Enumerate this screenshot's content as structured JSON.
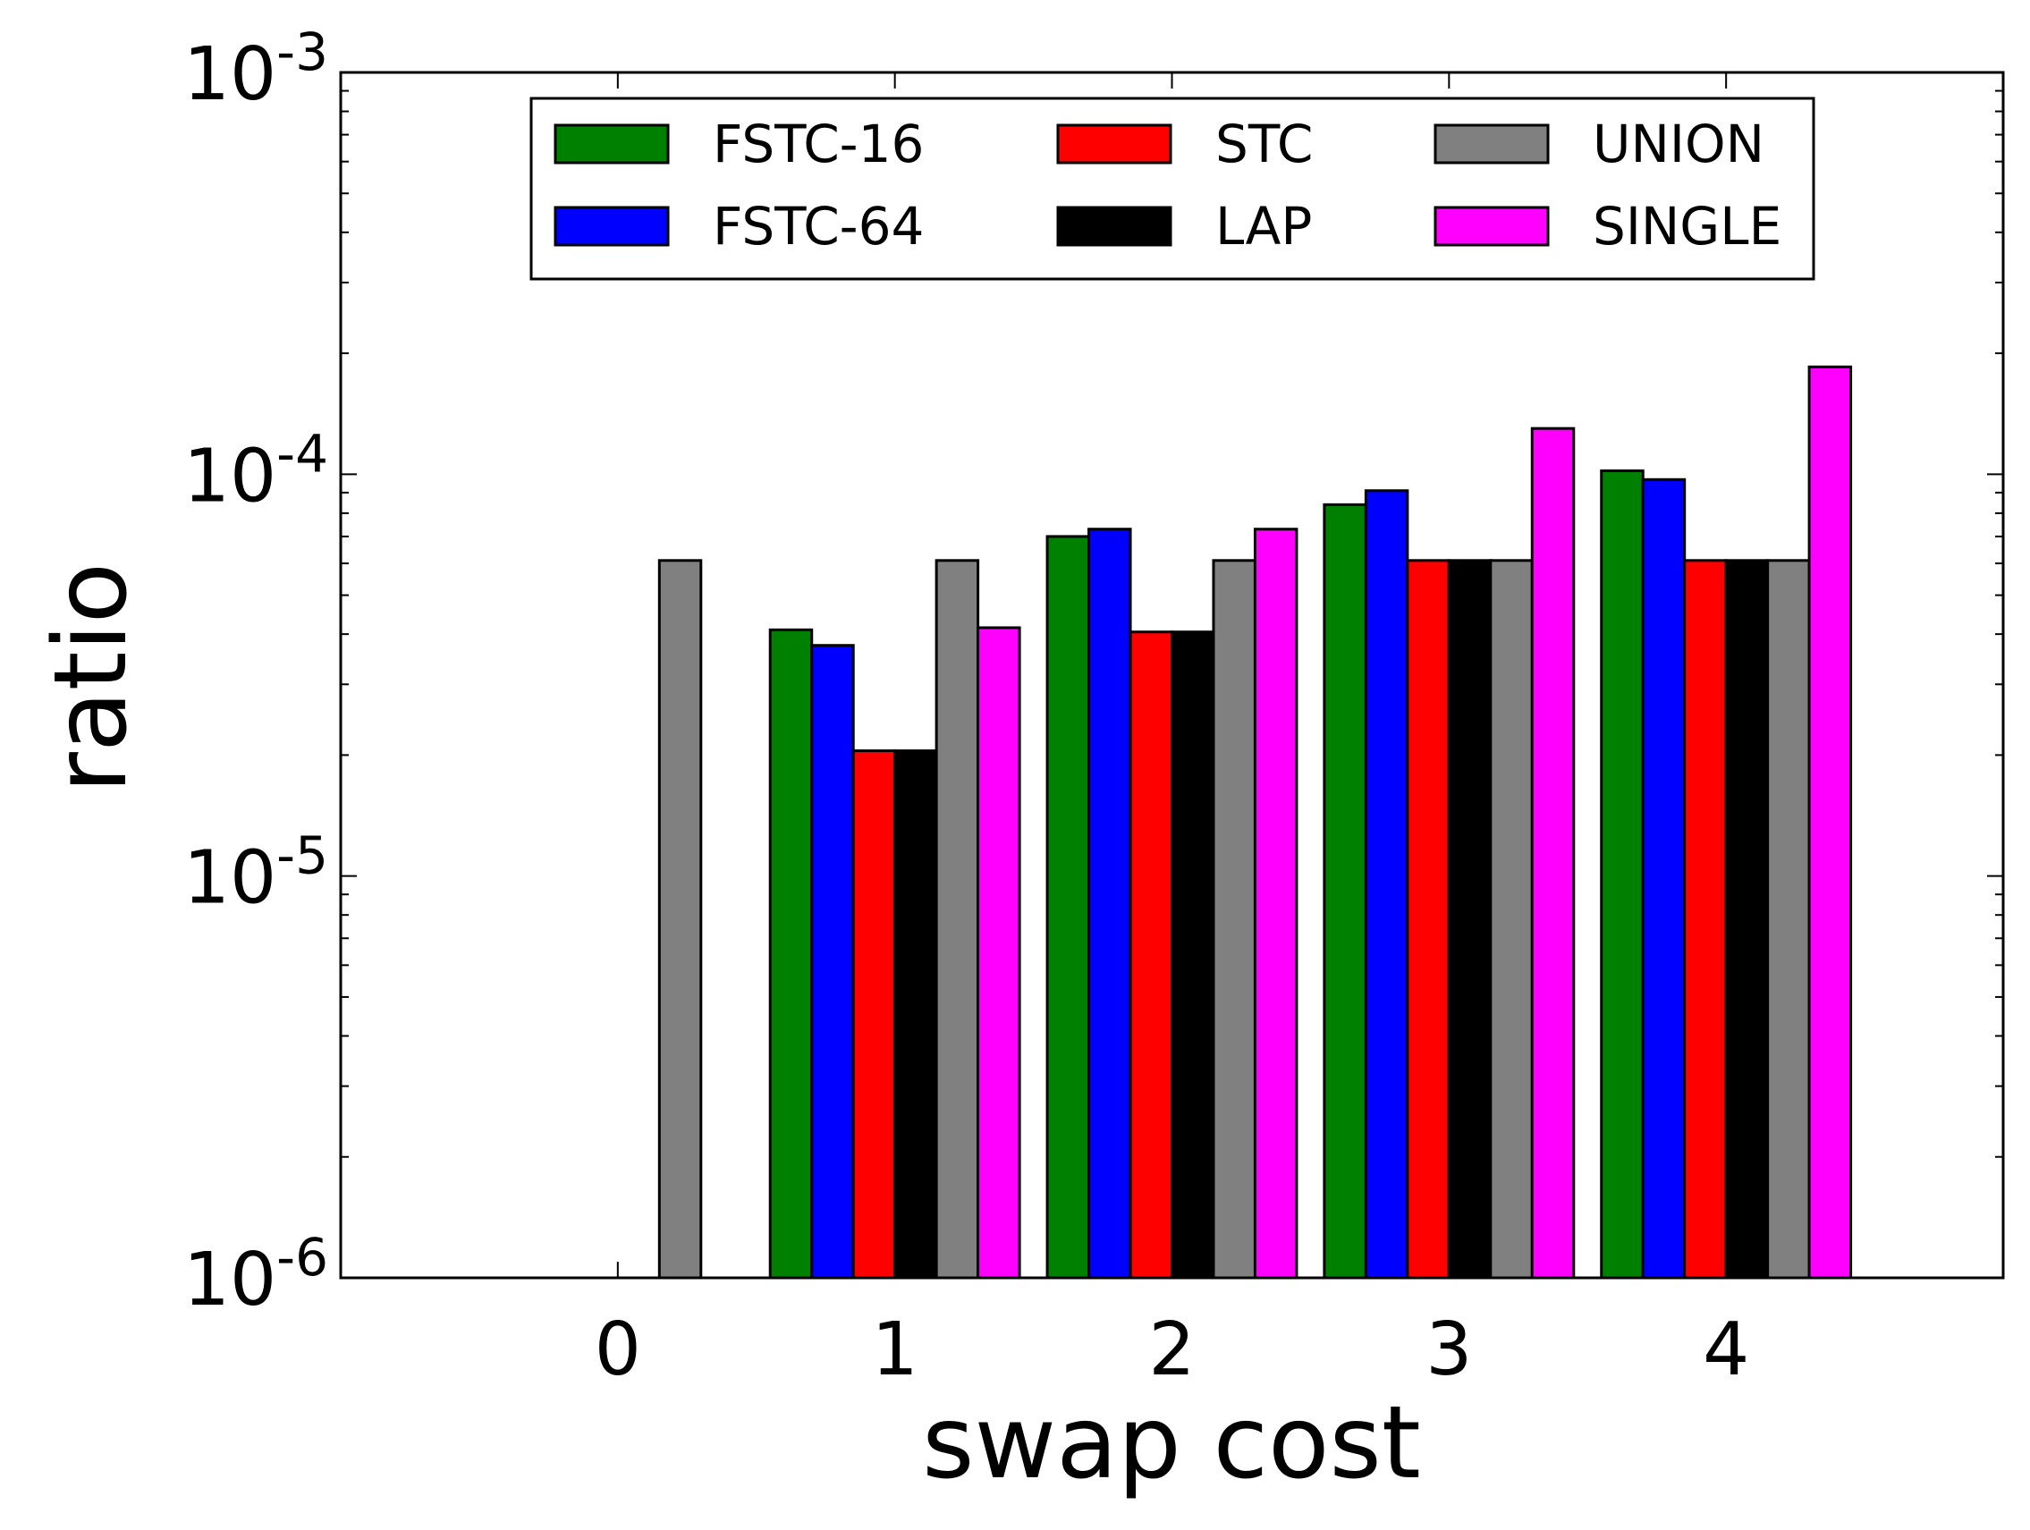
{
  "chart_data": {
    "type": "bar",
    "title": "",
    "xlabel": "swap cost",
    "ylabel": "ratio",
    "yscale": "log",
    "ylim": [
      1e-06,
      0.001
    ],
    "xlim": [
      -1,
      5
    ],
    "categories": [
      "0",
      "1",
      "2",
      "3",
      "4"
    ],
    "ytick_labels": [
      {
        "base": "10",
        "exp": "-6",
        "value": 1e-06
      },
      {
        "base": "10",
        "exp": "-5",
        "value": 1e-05
      },
      {
        "base": "10",
        "exp": "-4",
        "value": 0.0001
      },
      {
        "base": "10",
        "exp": "-3",
        "value": 0.001
      }
    ],
    "legend_position": "top-center",
    "legend_columns": 3,
    "series": [
      {
        "name": "FSTC-16",
        "color": "#008000",
        "values": [
          1e-06,
          4.1e-05,
          7e-05,
          8.4e-05,
          0.000102
        ]
      },
      {
        "name": "FSTC-64",
        "color": "#0000ff",
        "values": [
          1e-06,
          3.75e-05,
          7.3e-05,
          9.1e-05,
          9.7e-05
        ]
      },
      {
        "name": "STC",
        "color": "#ff0000",
        "values": [
          1e-06,
          2.05e-05,
          4.05e-05,
          6.1e-05,
          6.1e-05
        ]
      },
      {
        "name": "LAP",
        "color": "#000000",
        "values": [
          1e-06,
          2.05e-05,
          4.05e-05,
          6.1e-05,
          6.1e-05
        ]
      },
      {
        "name": "UNION",
        "color": "#808080",
        "values": [
          6.1e-05,
          6.1e-05,
          6.1e-05,
          6.1e-05,
          6.1e-05
        ]
      },
      {
        "name": "SINGLE",
        "color": "#ff00ff",
        "values": [
          1e-06,
          4.15e-05,
          7.3e-05,
          0.00013,
          0.000185
        ]
      }
    ]
  }
}
